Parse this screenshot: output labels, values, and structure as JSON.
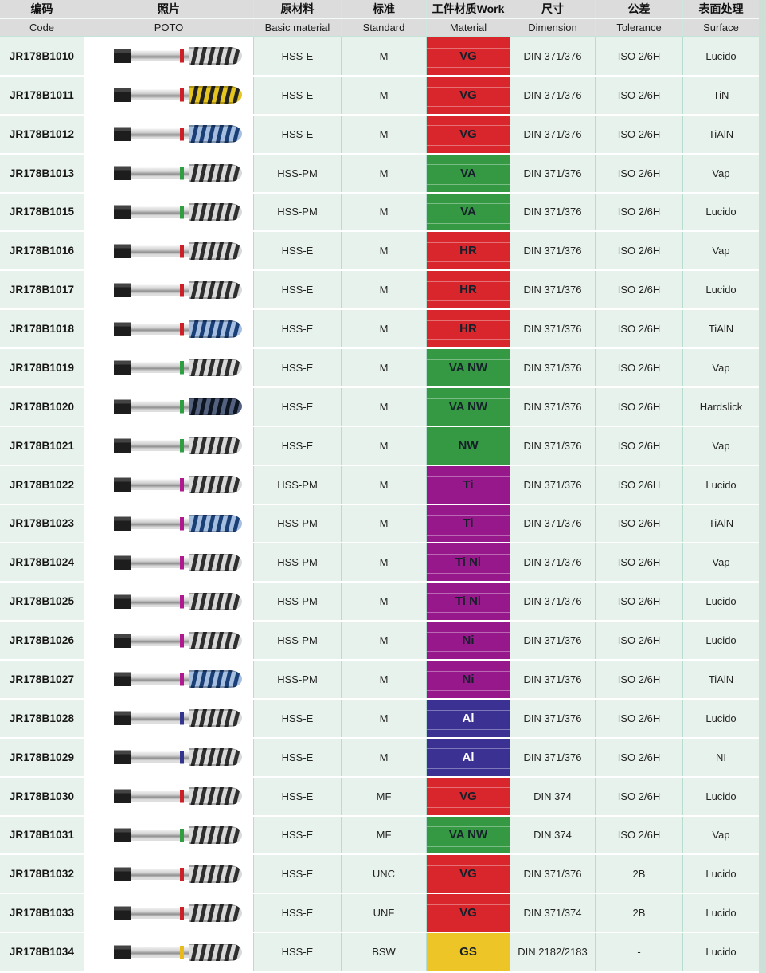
{
  "header": {
    "columns": [
      {
        "zh": "编码",
        "en": "Code"
      },
      {
        "zh": "照片",
        "en": "POTO"
      },
      {
        "zh": "原材料",
        "en": "Basic material"
      },
      {
        "zh": "标准",
        "en": "Standard"
      },
      {
        "zh": "工件材质Work",
        "en": "Material"
      },
      {
        "zh": "尺寸",
        "en": "Dimension"
      },
      {
        "zh": "公差",
        "en": "Tolerance"
      },
      {
        "zh": "表面处理",
        "en": "Surface"
      }
    ]
  },
  "colors": {
    "work": {
      "red": "#d8262c",
      "green": "#359843",
      "purple": "#96188a",
      "indigo": "#3b3193",
      "gold": "#edc527"
    },
    "work_text": {
      "dark": "#16202a",
      "light": "#ffffff"
    },
    "ring": {
      "red": "#cc2026",
      "green": "#2f9e41",
      "purple": "#b0188f",
      "blue": "#33348e",
      "yellow": "#e8bb1b"
    },
    "flute": {
      "silver": {
        "base": "#d9d9d9",
        "stripe": "#2e2e2e"
      },
      "yellow": {
        "base": "#e6c51e",
        "stripe": "#232323"
      },
      "blue": {
        "base": "#a6bfe0",
        "stripe": "#1a3f77"
      },
      "dark": {
        "base": "#54627f",
        "stripe": "#0d1422"
      }
    },
    "row_bg": "#e8f2ec",
    "header_bg": "#dcdcdc",
    "grid_line": "#b7dcd2",
    "edge_strip": "#cde0d8"
  },
  "rows": [
    {
      "code": "JR178B1010",
      "photo": {
        "ring": "red",
        "flute": "silver"
      },
      "basic": "HSS-E",
      "standard": "M",
      "work": {
        "label": "VG",
        "color": "red",
        "text": "dark"
      },
      "dimension": "DIN 371/376",
      "tolerance": "ISO 2/6H",
      "surface": "Lucido"
    },
    {
      "code": "JR178B1011",
      "photo": {
        "ring": "red",
        "flute": "yellow"
      },
      "basic": "HSS-E",
      "standard": "M",
      "work": {
        "label": "VG",
        "color": "red",
        "text": "dark"
      },
      "dimension": "DIN 371/376",
      "tolerance": "ISO 2/6H",
      "surface": "TiN"
    },
    {
      "code": "JR178B1012",
      "photo": {
        "ring": "red",
        "flute": "blue"
      },
      "basic": "HSS-E",
      "standard": "M",
      "work": {
        "label": "VG",
        "color": "red",
        "text": "dark"
      },
      "dimension": "DIN 371/376",
      "tolerance": "ISO 2/6H",
      "surface": "TiAlN"
    },
    {
      "code": "JR178B1013",
      "photo": {
        "ring": "green",
        "flute": "silver"
      },
      "basic": "HSS-PM",
      "standard": "M",
      "work": {
        "label": "VA",
        "color": "green",
        "text": "dark"
      },
      "dimension": "DIN 371/376",
      "tolerance": "ISO 2/6H",
      "surface": "Vap"
    },
    {
      "code": "JR178B1015",
      "photo": {
        "ring": "green",
        "flute": "silver"
      },
      "basic": "HSS-PM",
      "standard": "M",
      "work": {
        "label": "VA",
        "color": "green",
        "text": "dark"
      },
      "dimension": "DIN 371/376",
      "tolerance": "ISO 2/6H",
      "surface": "Lucido"
    },
    {
      "code": "JR178B1016",
      "photo": {
        "ring": "red",
        "flute": "silver"
      },
      "basic": "HSS-E",
      "standard": "M",
      "work": {
        "label": "HR",
        "color": "red",
        "text": "dark"
      },
      "dimension": "DIN 371/376",
      "tolerance": "ISO 2/6H",
      "surface": "Vap"
    },
    {
      "code": "JR178B1017",
      "photo": {
        "ring": "red",
        "flute": "silver"
      },
      "basic": "HSS-E",
      "standard": "M",
      "work": {
        "label": "HR",
        "color": "red",
        "text": "dark"
      },
      "dimension": "DIN 371/376",
      "tolerance": "ISO 2/6H",
      "surface": "Lucido"
    },
    {
      "code": "JR178B1018",
      "photo": {
        "ring": "red",
        "flute": "blue"
      },
      "basic": "HSS-E",
      "standard": "M",
      "work": {
        "label": "HR",
        "color": "red",
        "text": "dark"
      },
      "dimension": "DIN 371/376",
      "tolerance": "ISO 2/6H",
      "surface": "TiAlN"
    },
    {
      "code": "JR178B1019",
      "photo": {
        "ring": "green",
        "flute": "silver"
      },
      "basic": "HSS-E",
      "standard": "M",
      "work": {
        "label": "VA NW",
        "color": "green",
        "text": "dark"
      },
      "dimension": "DIN 371/376",
      "tolerance": "ISO 2/6H",
      "surface": "Vap"
    },
    {
      "code": "JR178B1020",
      "photo": {
        "ring": "green",
        "flute": "dark"
      },
      "basic": "HSS-E",
      "standard": "M",
      "work": {
        "label": "VA NW",
        "color": "green",
        "text": "dark"
      },
      "dimension": "DIN 371/376",
      "tolerance": "ISO 2/6H",
      "surface": "Hardslick"
    },
    {
      "code": "JR178B1021",
      "photo": {
        "ring": "green",
        "flute": "silver"
      },
      "basic": "HSS-E",
      "standard": "M",
      "work": {
        "label": "NW",
        "color": "green",
        "text": "dark"
      },
      "dimension": "DIN 371/376",
      "tolerance": "ISO 2/6H",
      "surface": "Vap"
    },
    {
      "code": "JR178B1022",
      "photo": {
        "ring": "purple",
        "flute": "silver"
      },
      "basic": "HSS-PM",
      "standard": "M",
      "work": {
        "label": "Ti",
        "color": "purple",
        "text": "dark"
      },
      "dimension": "DIN 371/376",
      "tolerance": "ISO 2/6H",
      "surface": "Lucido"
    },
    {
      "code": "JR178B1023",
      "photo": {
        "ring": "purple",
        "flute": "blue"
      },
      "basic": "HSS-PM",
      "standard": "M",
      "work": {
        "label": "Ti",
        "color": "purple",
        "text": "dark"
      },
      "dimension": "DIN 371/376",
      "tolerance": "ISO 2/6H",
      "surface": "TiAlN"
    },
    {
      "code": "JR178B1024",
      "photo": {
        "ring": "purple",
        "flute": "silver"
      },
      "basic": "HSS-PM",
      "standard": "M",
      "work": {
        "label": "Ti Ni",
        "color": "purple",
        "text": "dark"
      },
      "dimension": "DIN 371/376",
      "tolerance": "ISO 2/6H",
      "surface": "Vap"
    },
    {
      "code": "JR178B1025",
      "photo": {
        "ring": "purple",
        "flute": "silver"
      },
      "basic": "HSS-PM",
      "standard": "M",
      "work": {
        "label": "Ti Ni",
        "color": "purple",
        "text": "dark"
      },
      "dimension": "DIN 371/376",
      "tolerance": "ISO 2/6H",
      "surface": "Lucido"
    },
    {
      "code": "JR178B1026",
      "photo": {
        "ring": "purple",
        "flute": "silver"
      },
      "basic": "HSS-PM",
      "standard": "M",
      "work": {
        "label": "Ni",
        "color": "purple",
        "text": "dark"
      },
      "dimension": "DIN 371/376",
      "tolerance": "ISO 2/6H",
      "surface": "Lucido"
    },
    {
      "code": "JR178B1027",
      "photo": {
        "ring": "purple",
        "flute": "blue"
      },
      "basic": "HSS-PM",
      "standard": "M",
      "work": {
        "label": "Ni",
        "color": "purple",
        "text": "dark"
      },
      "dimension": "DIN 371/376",
      "tolerance": "ISO 2/6H",
      "surface": "TiAlN"
    },
    {
      "code": "JR178B1028",
      "photo": {
        "ring": "blue",
        "flute": "silver"
      },
      "basic": "HSS-E",
      "standard": "M",
      "work": {
        "label": "Al",
        "color": "indigo",
        "text": "light"
      },
      "dimension": "DIN 371/376",
      "tolerance": "ISO 2/6H",
      "surface": "Lucido"
    },
    {
      "code": "JR178B1029",
      "photo": {
        "ring": "blue",
        "flute": "silver"
      },
      "basic": "HSS-E",
      "standard": "M",
      "work": {
        "label": "Al",
        "color": "indigo",
        "text": "light"
      },
      "dimension": "DIN 371/376",
      "tolerance": "ISO 2/6H",
      "surface": "NI"
    },
    {
      "code": "JR178B1030",
      "photo": {
        "ring": "red",
        "flute": "silver"
      },
      "basic": "HSS-E",
      "standard": "MF",
      "work": {
        "label": "VG",
        "color": "red",
        "text": "dark"
      },
      "dimension": "DIN 374",
      "tolerance": "ISO 2/6H",
      "surface": "Lucido"
    },
    {
      "code": "JR178B1031",
      "photo": {
        "ring": "green",
        "flute": "silver"
      },
      "basic": "HSS-E",
      "standard": "MF",
      "work": {
        "label": "VA NW",
        "color": "green",
        "text": "dark"
      },
      "dimension": "DIN 374",
      "tolerance": "ISO 2/6H",
      "surface": "Vap"
    },
    {
      "code": "JR178B1032",
      "photo": {
        "ring": "red",
        "flute": "silver"
      },
      "basic": "HSS-E",
      "standard": "UNC",
      "work": {
        "label": "VG",
        "color": "red",
        "text": "dark"
      },
      "dimension": "DIN 371/376",
      "tolerance": "2B",
      "surface": "Lucido"
    },
    {
      "code": "JR178B1033",
      "photo": {
        "ring": "red",
        "flute": "silver"
      },
      "basic": "HSS-E",
      "standard": "UNF",
      "work": {
        "label": "VG",
        "color": "red",
        "text": "dark"
      },
      "dimension": "DIN 371/374",
      "tolerance": "2B",
      "surface": "Lucido"
    },
    {
      "code": "JR178B1034",
      "photo": {
        "ring": "yellow",
        "flute": "silver"
      },
      "basic": "HSS-E",
      "standard": "BSW",
      "work": {
        "label": "GS",
        "color": "gold",
        "text": "dark"
      },
      "dimension": "DIN 2182/2183",
      "tolerance": "-",
      "surface": "Lucido"
    }
  ]
}
